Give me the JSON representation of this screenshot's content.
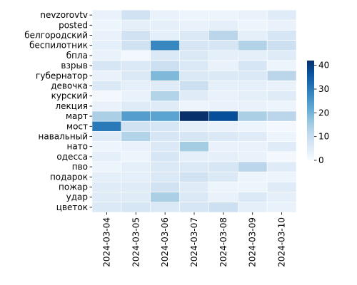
{
  "chart_data": {
    "type": "heatmap",
    "title": "",
    "xlabel": "",
    "ylabel": "",
    "x": [
      "2024-03-04",
      "2024-03-05",
      "2024-03-06",
      "2024-03-07",
      "2024-03-08",
      "2024-03-09",
      "2024-03-10"
    ],
    "y": [
      "nevzorovtv",
      "posted",
      "белгородский",
      "беспилотник",
      "бпла",
      "взрыв",
      "губернатор",
      "девочка",
      "курский",
      "лекция",
      "март",
      "мост",
      "навальный",
      "нато",
      "одесса",
      "пво",
      "подарок",
      "пожар",
      "удар",
      "цветок"
    ],
    "values": [
      [
        3,
        8,
        3,
        2,
        2,
        3,
        5
      ],
      [
        2,
        4,
        4,
        3,
        4,
        2,
        3
      ],
      [
        3,
        8,
        4,
        6,
        12,
        4,
        7
      ],
      [
        4,
        8,
        28,
        7,
        7,
        13,
        9
      ],
      [
        3,
        1,
        6,
        6,
        4,
        4,
        5
      ],
      [
        7,
        6,
        9,
        6,
        3,
        7,
        2
      ],
      [
        3,
        6,
        19,
        6,
        6,
        6,
        12
      ],
      [
        6,
        4,
        5,
        9,
        4,
        4,
        3
      ],
      [
        1,
        3,
        13,
        5,
        3,
        4,
        5
      ],
      [
        3,
        5,
        5,
        2,
        3,
        3,
        2
      ],
      [
        14,
        24,
        23,
        42,
        37,
        14,
        12
      ],
      [
        30,
        8,
        7,
        4,
        3,
        2,
        1
      ],
      [
        5,
        13,
        7,
        7,
        6,
        5,
        2
      ],
      [
        2,
        3,
        6,
        15,
        3,
        3,
        5
      ],
      [
        4,
        2,
        7,
        4,
        4,
        3,
        1
      ],
      [
        2,
        4,
        6,
        6,
        7,
        12,
        5
      ],
      [
        4,
        4,
        6,
        8,
        6,
        2,
        2
      ],
      [
        5,
        5,
        8,
        5,
        2,
        2,
        5
      ],
      [
        5,
        5,
        14,
        6,
        3,
        6,
        4
      ],
      [
        6,
        7,
        6,
        7,
        9,
        4,
        3
      ]
    ],
    "colormap": "Blues",
    "vmin": 0,
    "vmax": 42,
    "colorbar": {
      "ticks": [
        "0",
        "10",
        "20",
        "30",
        "40"
      ],
      "tick_values": [
        0,
        10,
        20,
        30,
        40
      ],
      "placement": "right"
    },
    "cell_border_color": "#ffffff"
  }
}
